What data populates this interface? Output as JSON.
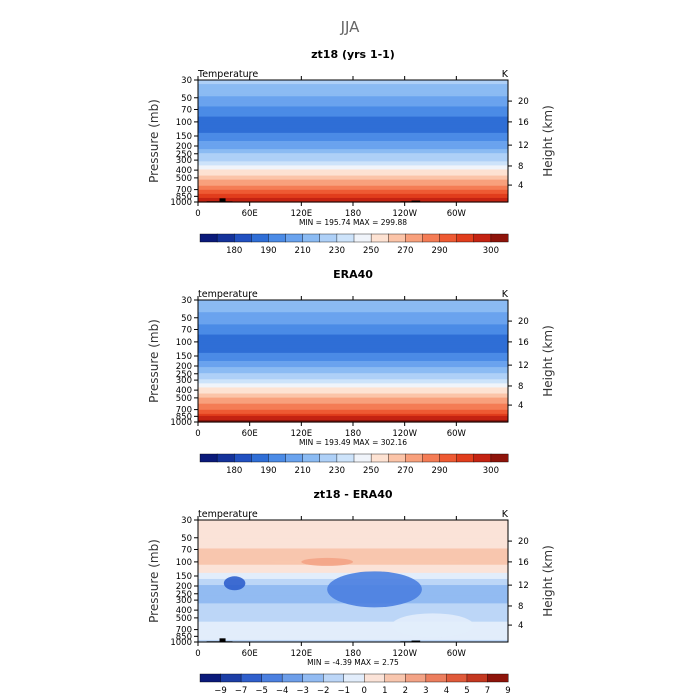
{
  "figure": {
    "title": "JJA"
  },
  "palettes": {
    "absolute": [
      "#0a1a7a",
      "#14329a",
      "#2150c0",
      "#2f6ed6",
      "#4b8be6",
      "#6aa3ee",
      "#8bbbf3",
      "#aed0f7",
      "#cde3fa",
      "#f0f4fa",
      "#fde2d2",
      "#fbc4a8",
      "#f8a07c",
      "#f47c55",
      "#ee5a33",
      "#e13d1c",
      "#c42312",
      "#8e140b"
    ],
    "difference": [
      "#0a1a7a",
      "#1c3ea6",
      "#2f5fcc",
      "#4b80e0",
      "#6d9ee9",
      "#92bbf2",
      "#bcd6f7",
      "#e2edfb",
      "#fbe3d8",
      "#f8c6ae",
      "#f3a386",
      "#ec7e5e",
      "#e05a3a",
      "#c43820",
      "#8e140b"
    ]
  },
  "chart_data": [
    {
      "type": "heatmap",
      "title": "zt18 (yrs 1-1)",
      "left_label": "Temperature",
      "units_label": "K",
      "xlabel": "",
      "ylabel": "Pressure (mb)",
      "y2label": "Height (km)",
      "x_ticks": [
        "0",
        "60E",
        "120E",
        "180",
        "120W",
        "60W"
      ],
      "x_range": [
        0,
        360
      ],
      "y_ticks": [
        "30",
        "50",
        "70",
        "100",
        "150",
        "200",
        "250",
        "300",
        "400",
        "500",
        "700",
        "850",
        "1000"
      ],
      "y_range": [
        30,
        1000
      ],
      "y_scale": "log",
      "y2_ticks": [
        "20",
        "16",
        "12",
        "8",
        "4"
      ],
      "stats": "MIN = 195.74   MAX = 299.88",
      "levels": [
        "180",
        "190",
        "210",
        "230",
        "250",
        "270",
        "290",
        "300"
      ],
      "profile": [
        {
          "p": 30,
          "v": 226
        },
        {
          "p": 50,
          "v": 216
        },
        {
          "p": 70,
          "v": 208
        },
        {
          "p": 100,
          "v": 200
        },
        {
          "p": 150,
          "v": 204
        },
        {
          "p": 200,
          "v": 214
        },
        {
          "p": 250,
          "v": 224
        },
        {
          "p": 300,
          "v": 230
        },
        {
          "p": 400,
          "v": 246
        },
        {
          "p": 500,
          "v": 256
        },
        {
          "p": 700,
          "v": 272
        },
        {
          "p": 850,
          "v": 284
        },
        {
          "p": 1000,
          "v": 296
        }
      ]
    },
    {
      "type": "heatmap",
      "title": "ERA40",
      "left_label": "temperature",
      "units_label": "K",
      "xlabel": "",
      "ylabel": "Pressure (mb)",
      "y2label": "Height (km)",
      "x_ticks": [
        "0",
        "60E",
        "120E",
        "180",
        "120W",
        "60W"
      ],
      "x_range": [
        0,
        360
      ],
      "y_ticks": [
        "30",
        "50",
        "70",
        "100",
        "150",
        "200",
        "250",
        "300",
        "400",
        "500",
        "700",
        "850",
        "1000"
      ],
      "y_range": [
        30,
        1000
      ],
      "y_scale": "log",
      "y2_ticks": [
        "20",
        "16",
        "12",
        "8",
        "4"
      ],
      "stats": "MIN = 193.49   MAX = 302.16",
      "levels": [
        "180",
        "190",
        "210",
        "230",
        "250",
        "270",
        "290",
        "300"
      ],
      "profile": [
        {
          "p": 30,
          "v": 224
        },
        {
          "p": 50,
          "v": 214
        },
        {
          "p": 70,
          "v": 206
        },
        {
          "p": 100,
          "v": 198
        },
        {
          "p": 150,
          "v": 204
        },
        {
          "p": 200,
          "v": 216
        },
        {
          "p": 250,
          "v": 226
        },
        {
          "p": 300,
          "v": 232
        },
        {
          "p": 400,
          "v": 248
        },
        {
          "p": 500,
          "v": 258
        },
        {
          "p": 700,
          "v": 274
        },
        {
          "p": 850,
          "v": 286
        },
        {
          "p": 1000,
          "v": 298
        }
      ]
    },
    {
      "type": "heatmap",
      "title": "zt18 - ERA40",
      "left_label": "temperature",
      "units_label": "K",
      "xlabel": "",
      "ylabel": "Pressure (mb)",
      "y2label": "Height (km)",
      "x_ticks": [
        "0",
        "60E",
        "120E",
        "180",
        "120W",
        "60W"
      ],
      "x_range": [
        0,
        360
      ],
      "y_ticks": [
        "30",
        "50",
        "70",
        "100",
        "150",
        "200",
        "250",
        "300",
        "400",
        "500",
        "700",
        "850",
        "1000"
      ],
      "y_range": [
        30,
        1000
      ],
      "y_scale": "log",
      "y2_ticks": [
        "20",
        "16",
        "12",
        "8",
        "4"
      ],
      "stats": "MIN =   -4.39   MAX =    2.75",
      "levels": [
        "−9",
        "−7",
        "−5",
        "−4",
        "−3",
        "−2",
        "−1",
        "0",
        "1",
        "2",
        "3",
        "4",
        "5",
        "7",
        "9"
      ],
      "profile": [
        {
          "p": 30,
          "v": 0.5
        },
        {
          "p": 50,
          "v": 0.6
        },
        {
          "p": 70,
          "v": 1.0
        },
        {
          "p": 100,
          "v": 1.5
        },
        {
          "p": 150,
          "v": -0.6
        },
        {
          "p": 200,
          "v": -2.2
        },
        {
          "p": 250,
          "v": -2.6
        },
        {
          "p": 300,
          "v": -2.2
        },
        {
          "p": 400,
          "v": -1.6
        },
        {
          "p": 500,
          "v": -1.2
        },
        {
          "p": 700,
          "v": -0.7
        },
        {
          "p": 850,
          "v": -0.9
        },
        {
          "p": 1000,
          "v": -1.1
        }
      ]
    }
  ]
}
